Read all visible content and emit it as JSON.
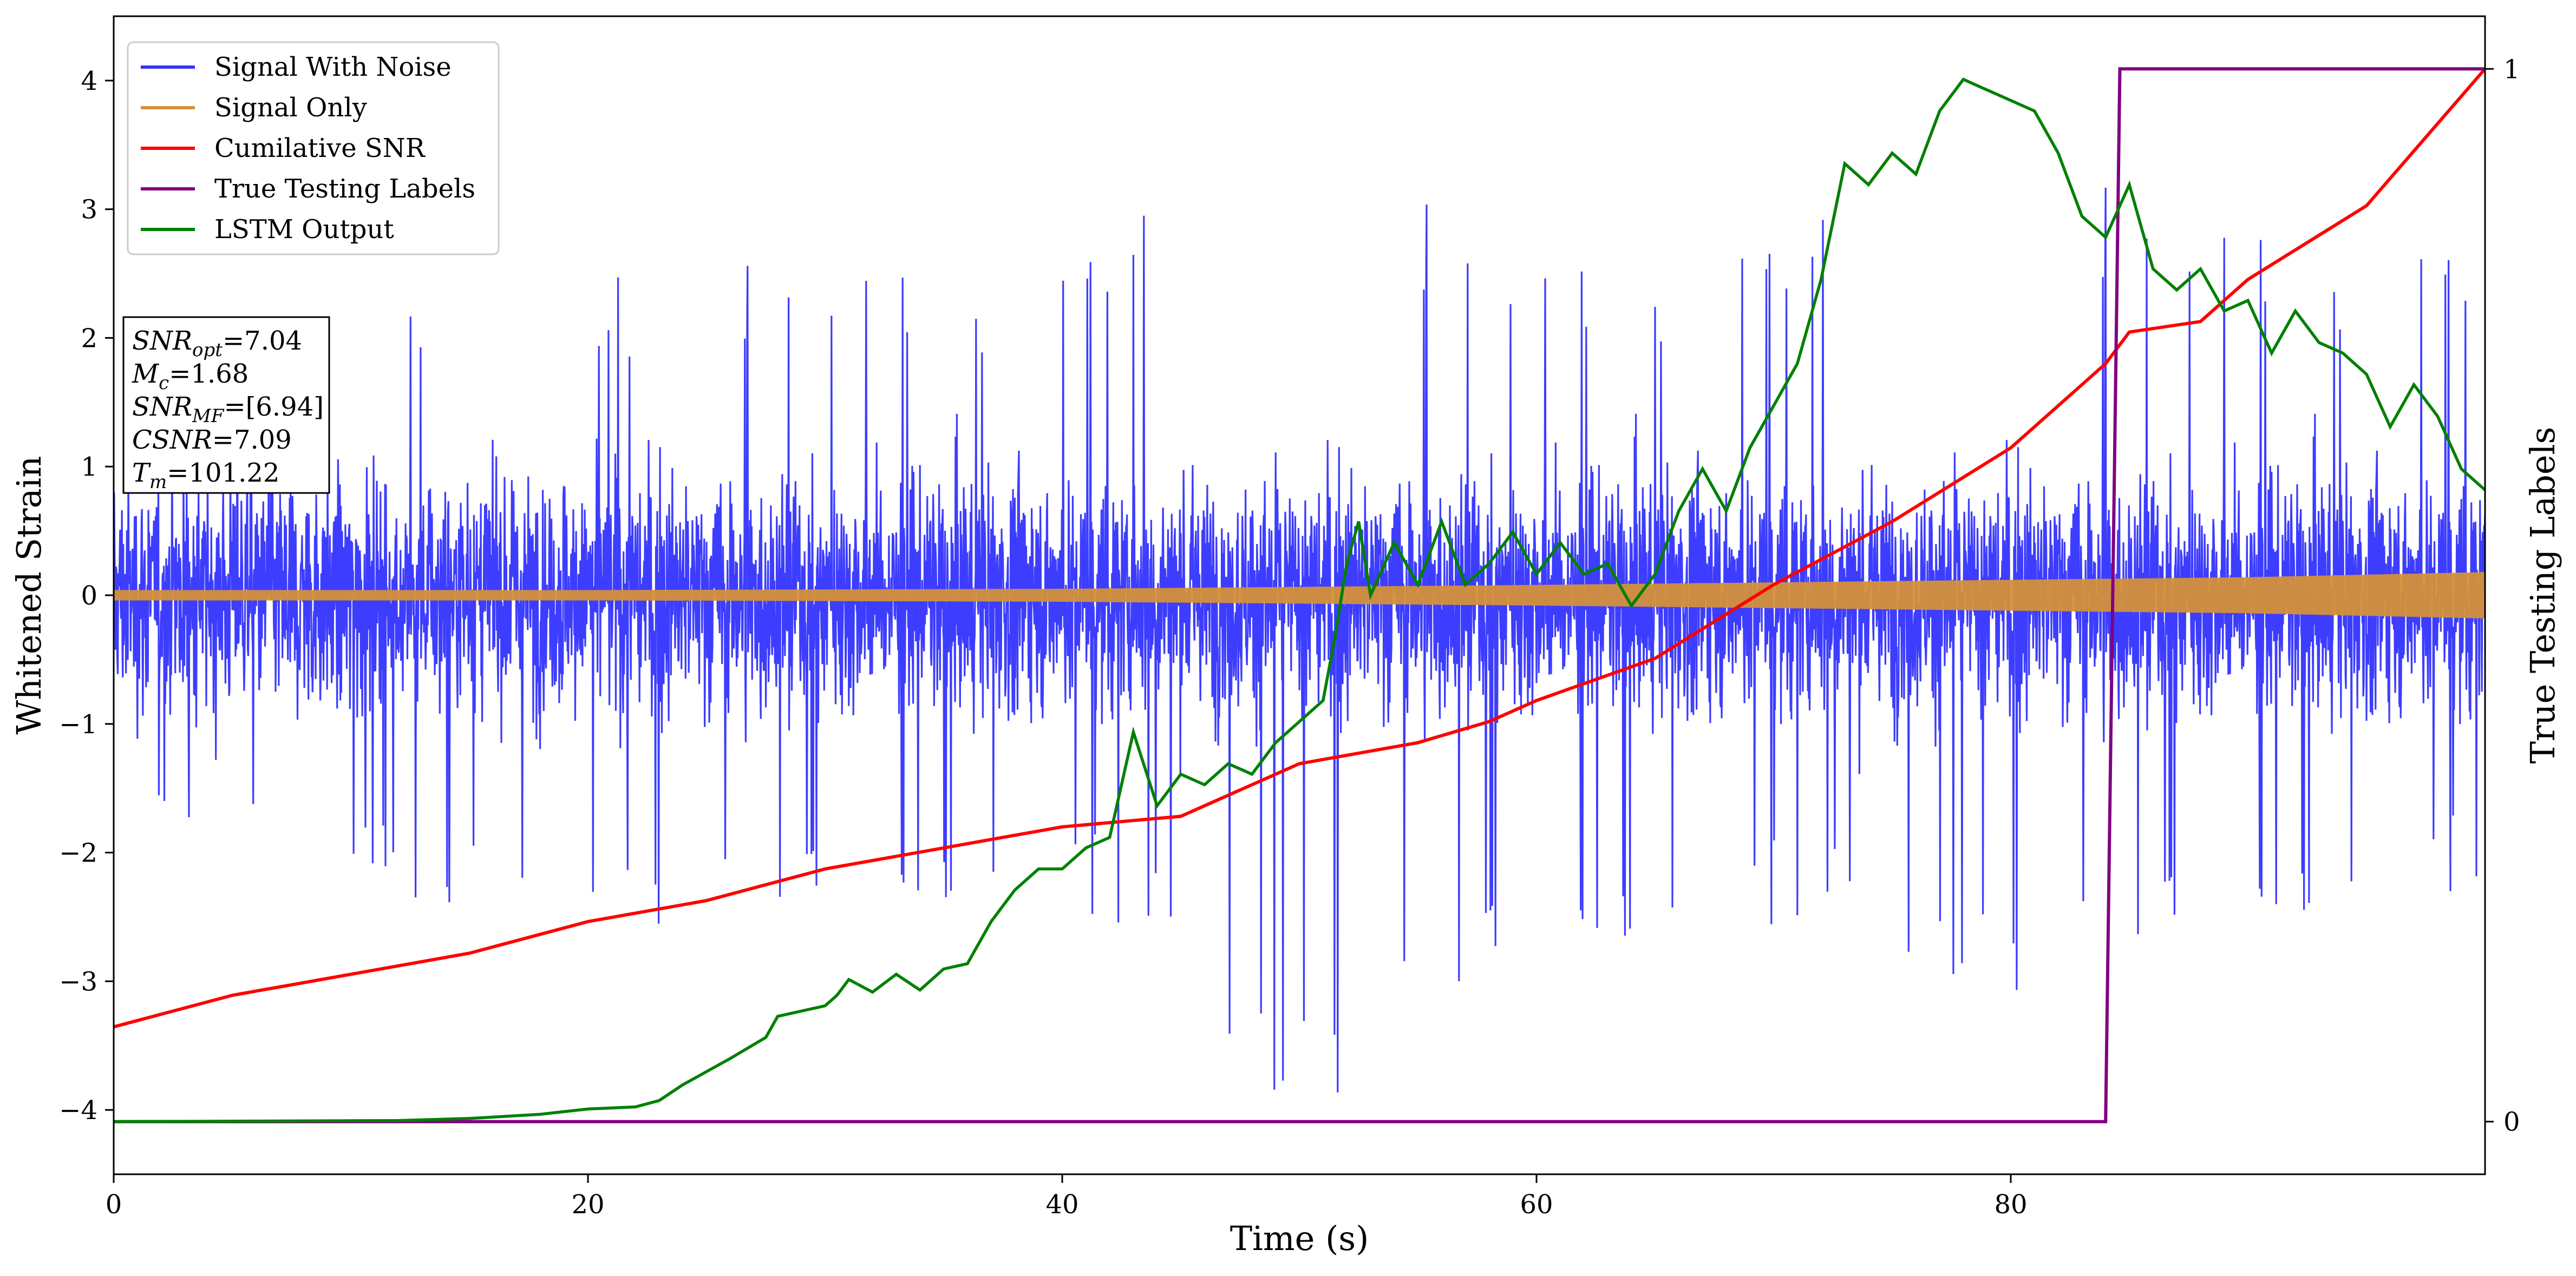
{
  "chart_data": {
    "type": "line",
    "xlabel": "Time (s)",
    "ylabel": "Whitened Strain",
    "y2label": "True Testing Labels",
    "xlim": [
      0,
      100
    ],
    "ylim": [
      -4.5,
      4.5
    ],
    "y2lim": [
      -0.05,
      1.05
    ],
    "xticks": [
      0,
      20,
      40,
      60,
      80
    ],
    "yticks": [
      -4,
      -3,
      -2,
      -1,
      0,
      1,
      2,
      3,
      4
    ],
    "y2ticks": [
      0,
      1
    ],
    "grid": false,
    "legend_position": "upper-left",
    "legend": [
      "Signal With Noise",
      "Signal Only",
      "Cumilative SNR",
      "True Testing Labels",
      "LSTM Output"
    ],
    "annotation": [
      {
        "sym": "SNR",
        "sub": "opt",
        "val": "=7.04"
      },
      {
        "sym": "M",
        "sub": "c",
        "val": "=1.68"
      },
      {
        "sym": "SNR",
        "sub": "MF",
        "val": "=[6.94]"
      },
      {
        "sym": "CSNR",
        "sub": "",
        "val": "=7.09"
      },
      {
        "sym": "T",
        "sub": "m",
        "val": "=101.22"
      }
    ],
    "series": [
      {
        "name": "Signal With Noise",
        "axis": "left",
        "color": "#3333ff",
        "description_envelope": "whitened noise with spikes roughly between -2.5 and 3.0",
        "upper_envelope": {
          "x": [
            0,
            10,
            20,
            30,
            40,
            50,
            60,
            70,
            80,
            90,
            100
          ],
          "y": [
            2.5,
            2.6,
            2.6,
            2.7,
            2.6,
            3.7,
            2.7,
            2.8,
            3.5,
            3.0,
            2.7
          ]
        },
        "lower_envelope": {
          "x": [
            0,
            10,
            20,
            30,
            40,
            50,
            60,
            70,
            80,
            90,
            100
          ],
          "y": [
            -2.2,
            -2.3,
            -2.6,
            -2.5,
            -2.4,
            -4.1,
            -2.8,
            -2.7,
            -3.1,
            -2.6,
            -2.4
          ]
        }
      },
      {
        "name": "Signal Only",
        "axis": "left",
        "color": "#d4903a",
        "amplitude": {
          "x": [
            0,
            20,
            40,
            60,
            80,
            90,
            100
          ],
          "y": [
            0.04,
            0.04,
            0.05,
            0.08,
            0.12,
            0.14,
            0.18
          ]
        }
      },
      {
        "name": "Cumilative SNR",
        "axis": "right",
        "color": "#ff0000",
        "x": [
          0,
          5,
          10,
          15,
          20,
          25,
          30,
          35,
          40,
          45,
          50,
          55,
          58,
          60,
          65,
          70,
          75,
          80,
          84,
          85,
          88,
          90,
          95,
          100
        ],
        "y": [
          0.09,
          0.12,
          0.14,
          0.16,
          0.19,
          0.21,
          0.24,
          0.26,
          0.28,
          0.29,
          0.34,
          0.36,
          0.38,
          0.4,
          0.44,
          0.51,
          0.57,
          0.64,
          0.72,
          0.75,
          0.76,
          0.8,
          0.87,
          1.0
        ]
      },
      {
        "name": "True Testing Labels",
        "axis": "right",
        "color": "#800080",
        "x": [
          0,
          84.0,
          84.6,
          100
        ],
        "y": [
          0,
          0,
          1,
          1
        ]
      },
      {
        "name": "LSTM Output",
        "axis": "right",
        "color": "#008000",
        "x": [
          0,
          12,
          15,
          18,
          20,
          22,
          23,
          24,
          26,
          27.5,
          28,
          30,
          30.5,
          31,
          32,
          33,
          34,
          35,
          36,
          37,
          38,
          39,
          40,
          41,
          42,
          43,
          44,
          45,
          46,
          47,
          48,
          49,
          50,
          51,
          51.5,
          52,
          52.5,
          53,
          54,
          55,
          56,
          57,
          58,
          59,
          60,
          61,
          62,
          63,
          64,
          65,
          66,
          67,
          68,
          69,
          70,
          71,
          72,
          73,
          74,
          75,
          76,
          77,
          78,
          79,
          80,
          81,
          82,
          83,
          84,
          85,
          86,
          87,
          88,
          89,
          90,
          91,
          92,
          93,
          94,
          95,
          96,
          97,
          98,
          99,
          100
        ],
        "y": [
          0.0,
          0.001,
          0.003,
          0.007,
          0.012,
          0.014,
          0.02,
          0.035,
          0.06,
          0.08,
          0.1,
          0.11,
          0.12,
          0.135,
          0.123,
          0.14,
          0.125,
          0.145,
          0.15,
          0.19,
          0.22,
          0.24,
          0.24,
          0.26,
          0.27,
          0.37,
          0.3,
          0.33,
          0.32,
          0.34,
          0.33,
          0.36,
          0.38,
          0.4,
          0.46,
          0.53,
          0.57,
          0.5,
          0.55,
          0.51,
          0.57,
          0.51,
          0.53,
          0.56,
          0.52,
          0.55,
          0.52,
          0.53,
          0.49,
          0.52,
          0.58,
          0.62,
          0.58,
          0.64,
          0.68,
          0.72,
          0.8,
          0.91,
          0.89,
          0.92,
          0.9,
          0.96,
          0.99,
          0.98,
          0.97,
          0.96,
          0.92,
          0.86,
          0.84,
          0.89,
          0.81,
          0.79,
          0.81,
          0.77,
          0.78,
          0.73,
          0.77,
          0.74,
          0.73,
          0.71,
          0.66,
          0.7,
          0.67,
          0.62,
          0.6
        ]
      }
    ]
  }
}
